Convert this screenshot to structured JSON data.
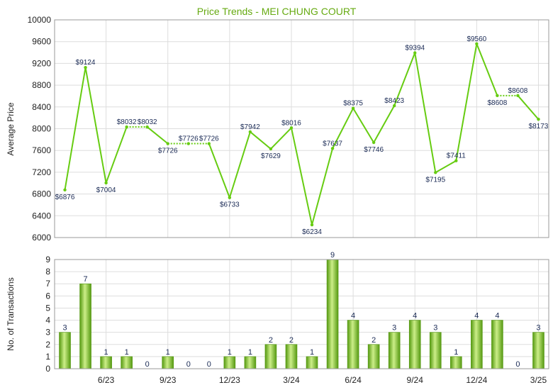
{
  "colors": {
    "title": "#66aa11",
    "line": "#66cc11",
    "bar_light": "#ccee88",
    "bar_dark": "#559911",
    "grid": "#dddddd",
    "axis": "#999999",
    "label": "#1a2a55"
  },
  "chart_data": [
    {
      "type": "line",
      "title": "Price Trends - MEI CHUNG COURT",
      "ylabel": "Average Price",
      "ylim": [
        6000,
        10000
      ],
      "yticks": [
        6000,
        6400,
        6800,
        7200,
        7600,
        8000,
        8400,
        8800,
        9200,
        9600,
        10000
      ],
      "x_tick_labels": [
        "6/23",
        "9/23",
        "12/23",
        "3/24",
        "6/24",
        "9/24",
        "12/24",
        "3/25"
      ],
      "x_tick_index": [
        2,
        5,
        8,
        11,
        14,
        17,
        20,
        23
      ],
      "grid": true,
      "series": [
        {
          "values": [
            6876,
            9124,
            7004,
            8032,
            8032,
            7726,
            7726,
            7726,
            6733,
            7942,
            7629,
            8016,
            6234,
            7637,
            8375,
            7746,
            8423,
            9394,
            7195,
            7411,
            9560,
            8608,
            8608,
            8173
          ],
          "labels": [
            "$6876",
            "$9124",
            "$7004",
            "$8032",
            "$8032",
            "$7726",
            "$7726",
            "$7726",
            "$6733",
            "$7942",
            "$7629",
            "$8016",
            "$6234",
            "$7637",
            "$8375",
            "$7746",
            "$8423",
            "$9394",
            "$7195",
            "$7411",
            "$9560",
            "$8608",
            "$8608",
            "$8173"
          ],
          "dotted_segments": [
            3,
            5,
            6,
            21
          ]
        }
      ]
    },
    {
      "type": "bar",
      "ylabel": "No. of Transactions",
      "ylim": [
        0,
        9
      ],
      "yticks": [
        0,
        1,
        2,
        3,
        4,
        5,
        6,
        7,
        8,
        9
      ],
      "x_tick_labels": [
        "6/23",
        "9/23",
        "12/23",
        "3/24",
        "6/24",
        "9/24",
        "12/24",
        "3/25"
      ],
      "x_tick_index": [
        2,
        5,
        8,
        11,
        14,
        17,
        20,
        23
      ],
      "grid": true,
      "values": [
        3,
        7,
        1,
        1,
        0,
        1,
        0,
        0,
        1,
        1,
        2,
        2,
        1,
        9,
        4,
        2,
        3,
        4,
        3,
        1,
        4,
        4,
        0,
        3
      ]
    }
  ]
}
